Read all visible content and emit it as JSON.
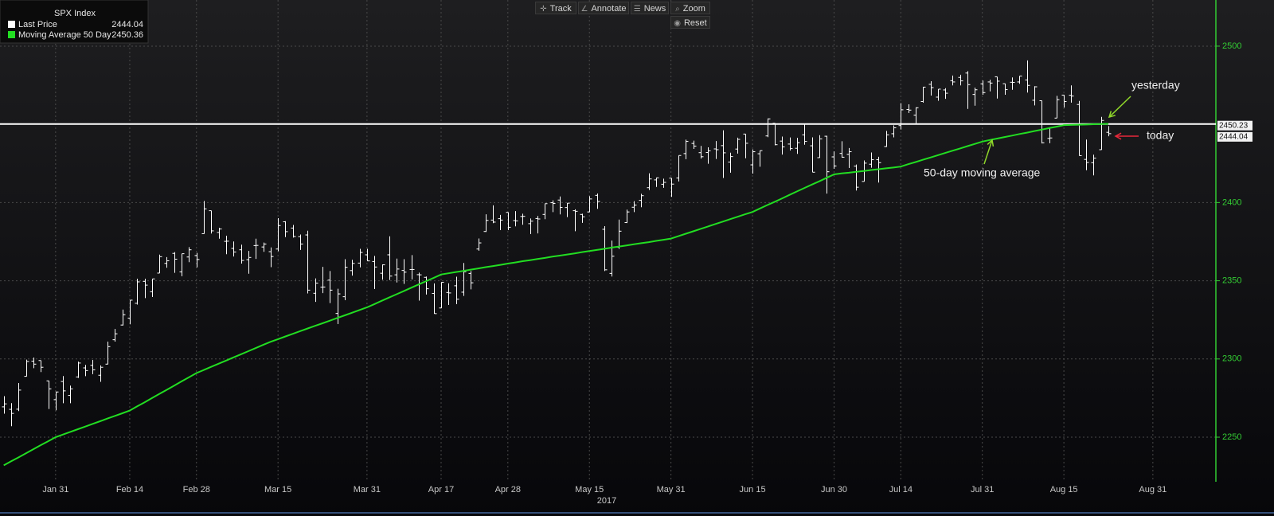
{
  "toolbar": [
    "Track",
    "Annotate",
    "News",
    "Zoom",
    "Reset"
  ],
  "chart_data": {
    "type": "ohlc",
    "title": "SPX Index",
    "year_label": "2017",
    "categories": [
      "2017-01-20",
      "2017-01-23",
      "2017-01-24",
      "2017-01-25",
      "2017-01-26",
      "2017-01-27",
      "2017-01-30",
      "2017-01-31",
      "2017-02-01",
      "2017-02-02",
      "2017-02-03",
      "2017-02-06",
      "2017-02-07",
      "2017-02-08",
      "2017-02-09",
      "2017-02-10",
      "2017-02-13",
      "2017-02-14",
      "2017-02-15",
      "2017-02-16",
      "2017-02-17",
      "2017-02-21",
      "2017-02-22",
      "2017-02-23",
      "2017-02-24",
      "2017-02-27",
      "2017-02-28",
      "2017-03-01",
      "2017-03-02",
      "2017-03-03",
      "2017-03-06",
      "2017-03-07",
      "2017-03-08",
      "2017-03-09",
      "2017-03-10",
      "2017-03-13",
      "2017-03-14",
      "2017-03-15",
      "2017-03-16",
      "2017-03-17",
      "2017-03-20",
      "2017-03-21",
      "2017-03-22",
      "2017-03-23",
      "2017-03-24",
      "2017-03-27",
      "2017-03-28",
      "2017-03-29",
      "2017-03-30",
      "2017-03-31",
      "2017-04-03",
      "2017-04-04",
      "2017-04-05",
      "2017-04-06",
      "2017-04-07",
      "2017-04-10",
      "2017-04-11",
      "2017-04-12",
      "2017-04-13",
      "2017-04-17",
      "2017-04-18",
      "2017-04-19",
      "2017-04-20",
      "2017-04-21",
      "2017-04-24",
      "2017-04-25",
      "2017-04-26",
      "2017-04-27",
      "2017-04-28",
      "2017-05-01",
      "2017-05-02",
      "2017-05-03",
      "2017-05-04",
      "2017-05-05",
      "2017-05-08",
      "2017-05-09",
      "2017-05-10",
      "2017-05-11",
      "2017-05-12",
      "2017-05-15",
      "2017-05-16",
      "2017-05-17",
      "2017-05-18",
      "2017-05-19",
      "2017-05-22",
      "2017-05-23",
      "2017-05-24",
      "2017-05-25",
      "2017-05-26",
      "2017-05-30",
      "2017-05-31",
      "2017-06-01",
      "2017-06-02",
      "2017-06-05",
      "2017-06-06",
      "2017-06-07",
      "2017-06-08",
      "2017-06-09",
      "2017-06-12",
      "2017-06-13",
      "2017-06-14",
      "2017-06-15",
      "2017-06-16",
      "2017-06-19",
      "2017-06-20",
      "2017-06-21",
      "2017-06-22",
      "2017-06-23",
      "2017-06-26",
      "2017-06-27",
      "2017-06-28",
      "2017-06-29",
      "2017-06-30",
      "2017-07-03",
      "2017-07-05",
      "2017-07-06",
      "2017-07-07",
      "2017-07-10",
      "2017-07-11",
      "2017-07-12",
      "2017-07-13",
      "2017-07-14",
      "2017-07-17",
      "2017-07-18",
      "2017-07-19",
      "2017-07-20",
      "2017-07-21",
      "2017-07-24",
      "2017-07-25",
      "2017-07-26",
      "2017-07-27",
      "2017-07-28",
      "2017-07-31",
      "2017-08-01",
      "2017-08-02",
      "2017-08-03",
      "2017-08-04",
      "2017-08-07",
      "2017-08-08",
      "2017-08-09",
      "2017-08-10",
      "2017-08-11",
      "2017-08-14",
      "2017-08-15",
      "2017-08-16",
      "2017-08-17",
      "2017-08-18",
      "2017-08-21",
      "2017-08-22",
      "2017-08-23",
      "2017-08-24",
      "2017-08-25",
      "2017-08-28",
      "2017-08-29",
      "2017-08-30",
      "2017-08-31",
      "2017-09-01",
      "2017-09-05",
      "2017-09-06",
      "2017-09-07",
      "2017-09-08",
      "2017-09-11",
      "2017-09-12",
      "2017-09-13"
    ],
    "series": [
      {
        "name": "Last Price",
        "color": "#ffffff",
        "open": [
          2269.4,
          2267.8,
          2267.9,
          2288.9,
          2298.6,
          2299.0,
          2286.0,
          2274.0,
          2285.6,
          2276.7,
          2288.5,
          2294.3,
          2295.9,
          2289.6,
          2296.7,
          2312.3,
          2321.7,
          2326.1,
          2335.6,
          2349.6,
          2343.0,
          2354.9,
          2361.1,
          2367.5,
          2355.7,
          2365.2,
          2366.1,
          2380.1,
          2394.8,
          2380.9,
          2375.2,
          2370.7,
          2369.8,
          2363.5,
          2372.5,
          2371.6,
          2368.6,
          2370.3,
          2387.7,
          2383.7,
          2378.2,
          2379.3,
          2342.0,
          2345.9,
          2350.4,
          2329.1,
          2339.8,
          2356.5,
          2361.3,
          2366.6,
          2362.3,
          2354.8,
          2366.6,
          2353.8,
          2356.6,
          2357.2,
          2353.9,
          2352.2,
          2341.9,
          2332.6,
          2342.5,
          2346.8,
          2342.7,
          2354.7,
          2370.3,
          2381.5,
          2388.8,
          2389.7,
          2393.7,
          2388.5,
          2391.1,
          2386.5,
          2389.8,
          2392.4,
          2399.9,
          2401.6,
          2396.8,
          2394.8,
          2392.4,
          2394.0,
          2404.6,
          2382.9,
          2354.7,
          2371.4,
          2387.2,
          2397.0,
          2401.4,
          2409.5,
          2414.5,
          2411.7,
          2415.6,
          2415.7,
          2431.3,
          2437.8,
          2431.9,
          2432.0,
          2434.3,
          2436.4,
          2425.9,
          2434.2,
          2443.8,
          2424.1,
          2431.2,
          2442.6,
          2450.7,
          2439.3,
          2437.4,
          2434.7,
          2443.3,
          2436.3,
          2428.7,
          2442.4,
          2429.2,
          2431.4,
          2430.8,
          2423.3,
          2413.5,
          2424.5,
          2427.4,
          2435.8,
          2444.0,
          2449.2,
          2459.5,
          2455.9,
          2464.6,
          2475.6,
          2467.4,
          2472.0,
          2477.9,
          2480.0,
          2482.8,
          2469.1,
          2475.9,
          2477.1,
          2480.4,
          2476.0,
          2476.9,
          2477.1,
          2478.4,
          2465.4,
          2465.1,
          2441.0,
          2454.0,
          2468.7,
          2468.6,
          2462.7,
          2427.6,
          2425.5,
          2433.8,
          2444.9,
          null,
          null,
          null,
          null,
          null,
          null,
          null,
          null,
          null,
          null,
          null,
          null,
          null,
          null
        ],
        "high": [
          2276.2,
          2271.8,
          2284.6,
          2299.6,
          2300.9,
          2299.0,
          2286.0,
          2279.1,
          2289.1,
          2283.0,
          2298.3,
          2296.2,
          2299.4,
          2295.9,
          2311.1,
          2319.2,
          2331.6,
          2337.6,
          2351.3,
          2351.3,
          2351.2,
          2366.7,
          2365.1,
          2368.3,
          2367.3,
          2371.5,
          2367.8,
          2401.0,
          2394.8,
          2383.9,
          2378.8,
          2375.1,
          2373.1,
          2369.1,
          2376.9,
          2374.4,
          2371.3,
          2390.0,
          2388.1,
          2385.7,
          2379.6,
          2382.0,
          2351.5,
          2358.9,
          2356.2,
          2344.9,
          2363.8,
          2363.4,
          2370.4,
          2370.4,
          2365.9,
          2360.5,
          2378.4,
          2364.2,
          2363.8,
          2366.4,
          2355.2,
          2352.7,
          2348.3,
          2349.1,
          2348.4,
          2352.6,
          2361.4,
          2356.2,
          2377.0,
          2392.5,
          2398.2,
          2392.1,
          2393.7,
          2394.5,
          2392.9,
          2389.8,
          2391.4,
          2399.3,
          2401.4,
          2403.9,
          2399.7,
          2395.7,
          2392.9,
          2404.1,
          2405.8,
          2384.9,
          2375.7,
          2389.1,
          2395.5,
          2400.9,
          2405.6,
          2418.7,
          2416.0,
          2415.3,
          2415.6,
          2430.1,
          2440.2,
          2439.6,
          2436.2,
          2435.3,
          2439.3,
          2446.2,
          2431.9,
          2441.5,
          2443.8,
          2434.0,
          2433.2,
          2453.8,
          2450.7,
          2442.2,
          2441.6,
          2441.4,
          2450.4,
          2441.7,
          2443.1,
          2442.7,
          2432.7,
          2439.2,
          2434.9,
          2424.3,
          2426.9,
          2432.0,
          2429.3,
          2445.8,
          2449.3,
          2463.5,
          2462.8,
          2460.9,
          2474.0,
          2477.6,
          2472.5,
          2473.1,
          2481.2,
          2481.7,
          2484.0,
          2473.5,
          2478.0,
          2478.5,
          2480.4,
          2476.0,
          2480.0,
          2480.9,
          2490.9,
          2474.4,
          2465.1,
          2448.1,
          2468.2,
          2468.7,
          2474.9,
          2465.0,
          2440.3,
          2430.6,
          2454.8,
          2448.9,
          null,
          null,
          null,
          null,
          null,
          null,
          null,
          null,
          null,
          null,
          null,
          null,
          null,
          null
        ],
        "low": [
          2265.0,
          2257.0,
          2266.7,
          2288.9,
          2294.1,
          2291.6,
          2268.0,
          2267.2,
          2271.7,
          2271.7,
          2287.9,
          2289.0,
          2290.2,
          2285.4,
          2296.6,
          2311.1,
          2321.4,
          2322.2,
          2334.8,
          2338.9,
          2339.6,
          2354.9,
          2358.3,
          2355.1,
          2352.9,
          2361.9,
          2358.6,
          2380.1,
          2380.2,
          2376.9,
          2367.0,
          2365.5,
          2361.0,
          2354.5,
          2364.0,
          2368.5,
          2358.7,
          2368.9,
          2377.9,
          2377.6,
          2369.7,
          2341.9,
          2336.5,
          2342.1,
          2335.7,
          2322.3,
          2337.6,
          2353.3,
          2358.6,
          2362.6,
          2344.7,
          2350.7,
          2350.5,
          2348.9,
          2348.0,
          2350.9,
          2337.3,
          2341.2,
          2328.9,
          2332.5,
          2334.5,
          2335.0,
          2340.3,
          2344.5,
          2369.2,
          2381.2,
          2386.8,
          2382.4,
          2382.4,
          2384.8,
          2385.8,
          2379.8,
          2380.3,
          2389.4,
          2393.9,
          2392.4,
          2390.7,
          2381.7,
          2387.0,
          2393.9,
          2396.0,
          2356.2,
          2352.7,
          2370.4,
          2386.9,
          2393.9,
          2397.0,
          2408.0,
          2410.0,
          2409.4,
          2403.6,
          2413.5,
          2427.7,
          2434.3,
          2428.1,
          2424.8,
          2427.9,
          2415.7,
          2419.1,
          2431.3,
          2428.3,
          2418.5,
          2422.9,
          2441.8,
          2436.6,
          2430.7,
          2433.3,
          2431.1,
          2437.0,
          2419.4,
          2428.7,
          2405.7,
          2421.6,
          2428.7,
          2422.1,
          2407.7,
          2413.5,
          2422.3,
          2412.8,
          2435.6,
          2441.7,
          2446.7,
          2457.2,
          2450.3,
          2463.9,
          2468.4,
          2465.1,
          2466.3,
          2474.9,
          2474.9,
          2459.9,
          2461.9,
          2468.9,
          2471.1,
          2466.5,
          2468.9,
          2472.1,
          2475.9,
          2470.3,
          2462.1,
          2437.8,
          2437.9,
          2454.0,
          2460.8,
          2463.9,
          2430.0,
          2420.7,
          2417.4,
          2433.7,
          2442.4,
          null,
          null,
          null,
          null,
          null,
          null,
          null,
          null,
          null,
          null,
          null,
          null,
          null,
          null
        ],
        "close": [
          2271.3,
          2265.2,
          2280.1,
          2298.4,
          2296.7,
          2294.7,
          2280.9,
          2278.9,
          2279.6,
          2280.9,
          2297.4,
          2292.6,
          2293.1,
          2294.7,
          2307.9,
          2316.1,
          2328.3,
          2337.6,
          2349.3,
          2347.2,
          2351.2,
          2365.4,
          2362.8,
          2363.8,
          2367.3,
          2369.8,
          2363.6,
          2396.0,
          2381.9,
          2383.1,
          2375.3,
          2368.4,
          2363.0,
          2364.9,
          2372.6,
          2373.5,
          2365.5,
          2385.3,
          2381.4,
          2378.3,
          2373.5,
          2344.0,
          2348.5,
          2346.0,
          2344.0,
          2341.6,
          2358.6,
          2361.1,
          2368.1,
          2362.7,
          2358.8,
          2360.2,
          2353.0,
          2357.5,
          2355.5,
          2357.2,
          2353.8,
          2344.9,
          2329.0,
          2349.0,
          2342.2,
          2338.2,
          2355.8,
          2348.7,
          2374.2,
          2388.6,
          2387.5,
          2388.8,
          2384.2,
          2388.3,
          2391.2,
          2388.1,
          2389.5,
          2399.3,
          2399.4,
          2396.9,
          2399.6,
          2394.4,
          2390.9,
          2402.3,
          2400.7,
          2357.0,
          2365.7,
          2381.7,
          2394.0,
          2398.4,
          2404.4,
          2415.1,
          2415.8,
          2412.9,
          2411.8,
          2430.1,
          2439.1,
          2436.1,
          2429.3,
          2433.1,
          2433.8,
          2431.8,
          2429.4,
          2440.4,
          2437.9,
          2432.5,
          2433.2,
          2453.5,
          2437.0,
          2435.6,
          2434.5,
          2438.3,
          2439.1,
          2419.4,
          2440.7,
          2419.7,
          2423.4,
          2429.0,
          2432.5,
          2409.8,
          2425.2,
          2427.4,
          2425.5,
          2443.3,
          2447.8,
          2459.3,
          2459.1,
          2460.6,
          2473.8,
          2473.5,
          2472.5,
          2469.9,
          2477.1,
          2477.8,
          2475.4,
          2472.1,
          2470.3,
          2476.4,
          2477.6,
          2472.2,
          2476.8,
          2480.9,
          2474.9,
          2474.0,
          2438.2,
          2441.3,
          2465.8,
          2464.6,
          2468.1,
          2430.0,
          2425.6,
          2428.4,
          2452.5,
          2444.04,
          null,
          null,
          null,
          null,
          null,
          null,
          null,
          null,
          null,
          null,
          null,
          null,
          null,
          null
        ]
      },
      {
        "name": "Moving Average 50 Day",
        "color": "#22dd22",
        "values": [
          2232.0,
          2234.6,
          2237.1,
          2239.7,
          2242.3,
          2244.9,
          2247.4,
          2250.0,
          2251.7,
          2253.4,
          2255.1,
          2256.8,
          2258.5,
          2260.2,
          2261.9,
          2263.6,
          2265.3,
          2267.0,
          2269.7,
          2272.3,
          2275.0,
          2277.7,
          2280.3,
          2283.0,
          2285.7,
          2288.3,
          2291.0,
          2293.0,
          2295.0,
          2297.0,
          2299.0,
          2301.0,
          2303.0,
          2305.0,
          2307.0,
          2309.0,
          2311.0,
          2312.7,
          2314.4,
          2316.1,
          2317.8,
          2319.5,
          2321.2,
          2322.8,
          2324.5,
          2326.2,
          2327.9,
          2329.6,
          2331.3,
          2333.0,
          2335.1,
          2337.2,
          2339.3,
          2341.4,
          2343.5,
          2345.6,
          2347.7,
          2349.8,
          2351.9,
          2354.0,
          2354.8,
          2355.6,
          2356.3,
          2357.1,
          2357.9,
          2358.7,
          2359.4,
          2360.2,
          2361.0,
          2361.7,
          2362.5,
          2363.2,
          2363.9,
          2364.6,
          2365.4,
          2366.1,
          2366.8,
          2367.5,
          2368.3,
          2369.0,
          2369.7,
          2370.4,
          2371.2,
          2371.9,
          2372.6,
          2373.3,
          2374.0,
          2374.7,
          2375.5,
          2376.2,
          2377.0,
          2378.5,
          2380.1,
          2381.6,
          2383.2,
          2384.7,
          2386.3,
          2387.8,
          2389.4,
          2390.9,
          2392.5,
          2394.0,
          2396.2,
          2398.4,
          2400.5,
          2402.7,
          2404.9,
          2407.1,
          2409.3,
          2411.5,
          2413.6,
          2415.8,
          2418.0,
          2418.6,
          2419.1,
          2419.7,
          2420.2,
          2420.8,
          2421.3,
          2421.9,
          2422.4,
          2423.0,
          2424.5,
          2425.9,
          2427.4,
          2428.8,
          2430.3,
          2431.7,
          2433.2,
          2434.6,
          2436.1,
          2437.5,
          2439.0,
          2440.0,
          2440.9,
          2441.9,
          2442.8,
          2443.8,
          2444.7,
          2445.7,
          2446.6,
          2447.6,
          2448.5,
          2449.5,
          2449.6,
          2449.8,
          2449.9,
          2450.1,
          2450.2,
          2450.36,
          null,
          null,
          null,
          null,
          null,
          null,
          null,
          null,
          null,
          null,
          null,
          null,
          null,
          null
        ]
      }
    ],
    "reference_line": 2450.23,
    "ylim": [
      2221.5,
      2529.5
    ],
    "yticks": [
      2250,
      2300,
      2350,
      2400,
      2500
    ],
    "xticks": [
      {
        "value": "2017-01-31",
        "label": "Jan 31"
      },
      {
        "value": "2017-02-14",
        "label": "Feb 14"
      },
      {
        "value": "2017-02-28",
        "label": "Feb 28"
      },
      {
        "value": "2017-03-15",
        "label": "Mar 15"
      },
      {
        "value": "2017-03-31",
        "label": "Mar 31"
      },
      {
        "value": "2017-04-17",
        "label": "Apr 17"
      },
      {
        "value": "2017-04-28",
        "label": "Apr 28"
      },
      {
        "value": "2017-05-15",
        "label": "May 15"
      },
      {
        "value": "2017-05-31",
        "label": "May 31"
      },
      {
        "value": "2017-06-15",
        "label": "Jun 15"
      },
      {
        "value": "2017-06-30",
        "label": "Jun 30"
      },
      {
        "value": "2017-07-14",
        "label": "Jul 14"
      },
      {
        "value": "2017-07-31",
        "label": "Jul 31"
      },
      {
        "value": "2017-08-15",
        "label": "Aug 15"
      },
      {
        "value": "2017-08-31",
        "label": "Aug 31"
      }
    ],
    "grid": true,
    "axis_color": "#33cc33",
    "annotations": [
      {
        "text": "yesterday"
      },
      {
        "text": "today"
      },
      {
        "text": "50-day moving average"
      }
    ]
  }
}
